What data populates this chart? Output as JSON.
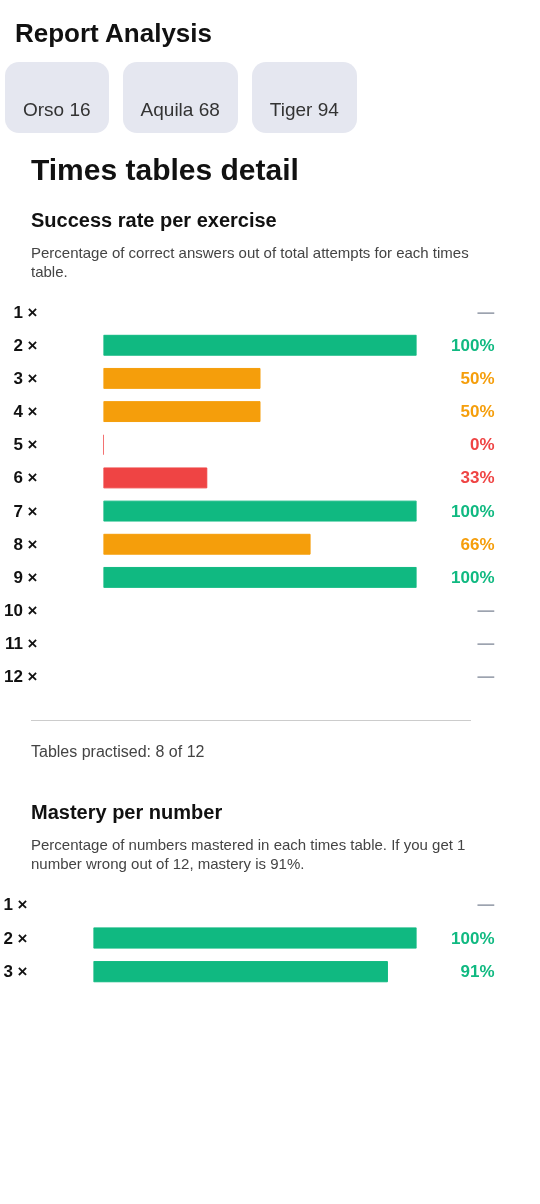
{
  "chart_data": [
    {
      "type": "other",
      "title": "Report Analysis",
      "subtitle": "Times tables detail",
      "annotations": [
        "Orso 16",
        "Aquila 68",
        "Tiger 94"
      ]
    },
    {
      "type": "bar",
      "orientation": "horizontal",
      "title": "Success rate per exercise",
      "subtitle": "Percentage of correct answers out of total attempts for each times table.",
      "categories": [
        "1 ×",
        "2 ×",
        "3 ×",
        "4 ×",
        "5 ×",
        "6 ×",
        "7 ×",
        "8 ×",
        "9 ×",
        "10 ×",
        "11 ×",
        "12 ×"
      ],
      "values": [
        null,
        100,
        50,
        50,
        0,
        33,
        100,
        66,
        100,
        null,
        null,
        null
      ],
      "colors": [
        "#9ca3af",
        "#10b981",
        "#f59e0b",
        "#f59e0b",
        "#ef4444",
        "#ef4444",
        "#10b981",
        "#f59e0b",
        "#10b981",
        "#9ca3af",
        "#9ca3af",
        "#9ca3af"
      ],
      "value_labels": [
        "—",
        "100%",
        "50%",
        "50%",
        "0%",
        "33%",
        "100%",
        "66%",
        "100%",
        "—",
        "—",
        "—"
      ],
      "xlim": [
        0,
        100
      ],
      "tick_labels": "y",
      "grid": false,
      "annotations": [
        "Tables practised: 8 of 12"
      ]
    },
    {
      "type": "bar",
      "orientation": "horizontal",
      "title": "Mastery per number",
      "subtitle": "Percentage of numbers mastered in each times table. If you get 1 number wrong out of 12, mastery is 91%.",
      "categories": [
        "1 ×",
        "2 ×",
        "3 ×"
      ],
      "values": [
        null,
        100,
        91
      ],
      "colors": [
        "#9ca3af",
        "#10b981",
        "#10b981"
      ],
      "value_labels": [
        "—",
        "100%",
        "91%"
      ],
      "xlim": [
        0,
        100
      ],
      "tick_labels": "y",
      "grid": false
    }
  ]
}
